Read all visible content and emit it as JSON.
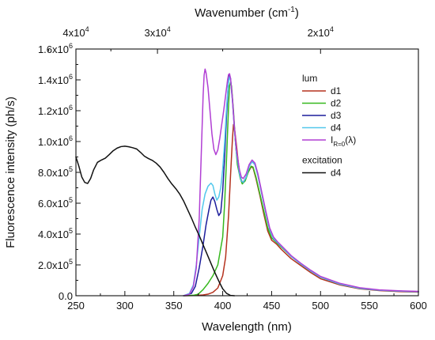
{
  "chart_data": {
    "type": "line",
    "x_axis": {
      "label": "Wavelength (nm)",
      "min": 250,
      "max": 600,
      "ticks": [
        250,
        300,
        350,
        400,
        450,
        500,
        550,
        600
      ],
      "tick_labels": [
        "250",
        "300",
        "350",
        "400",
        "450",
        "500",
        "550",
        "600"
      ]
    },
    "y_axis": {
      "label": "Fluorescence intensity (ph/s)",
      "min": 0,
      "max": 1600000,
      "ticks": [
        0,
        200000,
        400000,
        600000,
        800000,
        1000000,
        1200000,
        1400000,
        1600000
      ],
      "tick_labels": [
        {
          "mantissa": "0.0",
          "exp": ""
        },
        {
          "mantissa": "2.0x10",
          "exp": "5"
        },
        {
          "mantissa": "4.0x10",
          "exp": "5"
        },
        {
          "mantissa": "6.0x10",
          "exp": "5"
        },
        {
          "mantissa": "8.0x10",
          "exp": "5"
        },
        {
          "mantissa": "1.0x10",
          "exp": "6"
        },
        {
          "mantissa": "1.2x10",
          "exp": "6"
        },
        {
          "mantissa": "1.4x10",
          "exp": "6"
        },
        {
          "mantissa": "1.6x10",
          "exp": "6"
        }
      ]
    },
    "top_axis": {
      "label_main": "Wavenumber (cm",
      "label_exp": "-1",
      "label_end": ")",
      "ticks": [
        {
          "wavenumber": 40000,
          "mantissa": "4x10",
          "exp": "4"
        },
        {
          "wavenumber": 30000,
          "mantissa": "3x10",
          "exp": "4"
        },
        {
          "wavenumber": 20000,
          "mantissa": "2x10",
          "exp": "4"
        }
      ]
    },
    "legend": {
      "placement": "right",
      "lum_title": "lum",
      "exc_title": "excitation",
      "entries": [
        {
          "label": "d1",
          "color": "#b5321e"
        },
        {
          "label": "d2",
          "color": "#36b81e"
        },
        {
          "label": "d3",
          "color": "#1c1d9c"
        },
        {
          "label": "d4",
          "color": "#52c8ec"
        },
        {
          "label_main": "I",
          "label_sub": "R=0",
          "label_paren": "(λ)",
          "color": "#b13fd4"
        },
        {
          "label": "d4",
          "color": "#111111"
        }
      ]
    },
    "series": [
      {
        "name": "d1",
        "color": "#b5321e",
        "points": [
          [
            360,
            0
          ],
          [
            370,
            1000
          ],
          [
            380,
            5000
          ],
          [
            385,
            10000
          ],
          [
            390,
            22000
          ],
          [
            395,
            50000
          ],
          [
            400,
            130000
          ],
          [
            403,
            250000
          ],
          [
            406,
            520000
          ],
          [
            408,
            780000
          ],
          [
            410,
            1020000
          ],
          [
            411,
            1110000
          ],
          [
            412,
            1090000
          ],
          [
            414,
            980000
          ],
          [
            416,
            860000
          ],
          [
            418,
            770000
          ],
          [
            420,
            735000
          ],
          [
            423,
            750000
          ],
          [
            426,
            800000
          ],
          [
            429,
            835000
          ],
          [
            431,
            830000
          ],
          [
            434,
            760000
          ],
          [
            438,
            650000
          ],
          [
            442,
            530000
          ],
          [
            446,
            420000
          ],
          [
            450,
            360000
          ],
          [
            455,
            335000
          ],
          [
            460,
            300000
          ],
          [
            470,
            240000
          ],
          [
            480,
            195000
          ],
          [
            490,
            150000
          ],
          [
            500,
            110000
          ],
          [
            520,
            70000
          ],
          [
            540,
            45000
          ],
          [
            560,
            33000
          ],
          [
            580,
            27000
          ],
          [
            600,
            24000
          ]
        ]
      },
      {
        "name": "d2",
        "color": "#36b81e",
        "points": [
          [
            360,
            0
          ],
          [
            370,
            3000
          ],
          [
            375,
            10000
          ],
          [
            380,
            40000
          ],
          [
            385,
            80000
          ],
          [
            390,
            130000
          ],
          [
            395,
            200000
          ],
          [
            400,
            380000
          ],
          [
            402,
            600000
          ],
          [
            404,
            900000
          ],
          [
            406,
            1230000
          ],
          [
            407,
            1360000
          ],
          [
            408,
            1385000
          ],
          [
            409,
            1360000
          ],
          [
            411,
            1200000
          ],
          [
            413,
            1000000
          ],
          [
            415,
            850000
          ],
          [
            418,
            760000
          ],
          [
            420,
            725000
          ],
          [
            423,
            745000
          ],
          [
            426,
            800000
          ],
          [
            429,
            840000
          ],
          [
            431,
            835000
          ],
          [
            434,
            770000
          ],
          [
            438,
            660000
          ],
          [
            442,
            550000
          ],
          [
            446,
            440000
          ],
          [
            450,
            375000
          ],
          [
            455,
            345000
          ],
          [
            460,
            315000
          ],
          [
            470,
            255000
          ],
          [
            480,
            205000
          ],
          [
            490,
            160000
          ],
          [
            500,
            120000
          ],
          [
            520,
            75000
          ],
          [
            540,
            48000
          ],
          [
            560,
            36000
          ],
          [
            580,
            30000
          ],
          [
            600,
            26000
          ]
        ]
      },
      {
        "name": "d3",
        "color": "#1c1d9c",
        "points": [
          [
            360,
            0
          ],
          [
            368,
            15000
          ],
          [
            372,
            60000
          ],
          [
            376,
            180000
          ],
          [
            380,
            330000
          ],
          [
            383,
            460000
          ],
          [
            386,
            560000
          ],
          [
            388,
            620000
          ],
          [
            390,
            640000
          ],
          [
            392,
            610000
          ],
          [
            394,
            560000
          ],
          [
            396,
            520000
          ],
          [
            398,
            540000
          ],
          [
            400,
            680000
          ],
          [
            402,
            900000
          ],
          [
            404,
            1180000
          ],
          [
            406,
            1400000
          ],
          [
            407,
            1430000
          ],
          [
            408,
            1410000
          ],
          [
            410,
            1270000
          ],
          [
            412,
            1080000
          ],
          [
            414,
            930000
          ],
          [
            417,
            800000
          ],
          [
            419,
            745000
          ],
          [
            421,
            735000
          ],
          [
            424,
            770000
          ],
          [
            427,
            840000
          ],
          [
            430,
            870000
          ],
          [
            433,
            850000
          ],
          [
            436,
            780000
          ],
          [
            440,
            660000
          ],
          [
            444,
            540000
          ],
          [
            448,
            430000
          ],
          [
            452,
            370000
          ],
          [
            456,
            345000
          ],
          [
            460,
            320000
          ],
          [
            470,
            255000
          ],
          [
            480,
            205000
          ],
          [
            490,
            160000
          ],
          [
            500,
            120000
          ],
          [
            520,
            75000
          ],
          [
            540,
            48000
          ],
          [
            560,
            36000
          ],
          [
            580,
            30000
          ],
          [
            600,
            26000
          ]
        ]
      },
      {
        "name": "d4",
        "color": "#52c8ec",
        "points": [
          [
            360,
            0
          ],
          [
            366,
            15000
          ],
          [
            370,
            70000
          ],
          [
            373,
            200000
          ],
          [
            376,
            380000
          ],
          [
            379,
            560000
          ],
          [
            382,
            660000
          ],
          [
            385,
            710000
          ],
          [
            388,
            730000
          ],
          [
            390,
            715000
          ],
          [
            392,
            660000
          ],
          [
            394,
            620000
          ],
          [
            396,
            640000
          ],
          [
            398,
            700000
          ],
          [
            400,
            820000
          ],
          [
            402,
            1000000
          ],
          [
            404,
            1230000
          ],
          [
            406,
            1390000
          ],
          [
            407,
            1420000
          ],
          [
            408,
            1400000
          ],
          [
            410,
            1260000
          ],
          [
            412,
            1080000
          ],
          [
            414,
            930000
          ],
          [
            417,
            800000
          ],
          [
            419,
            745000
          ],
          [
            421,
            735000
          ],
          [
            424,
            770000
          ],
          [
            427,
            840000
          ],
          [
            430,
            870000
          ],
          [
            433,
            850000
          ],
          [
            436,
            780000
          ],
          [
            440,
            660000
          ],
          [
            444,
            540000
          ],
          [
            448,
            430000
          ],
          [
            452,
            370000
          ],
          [
            456,
            345000
          ],
          [
            460,
            320000
          ],
          [
            470,
            255000
          ],
          [
            480,
            205000
          ],
          [
            490,
            160000
          ],
          [
            500,
            120000
          ],
          [
            520,
            75000
          ],
          [
            540,
            48000
          ],
          [
            560,
            36000
          ],
          [
            580,
            30000
          ],
          [
            600,
            26000
          ]
        ]
      },
      {
        "name": "IR=0(λ)",
        "color": "#b13fd4",
        "points": [
          [
            360,
            0
          ],
          [
            366,
            10000
          ],
          [
            370,
            60000
          ],
          [
            373,
            180000
          ],
          [
            376,
            500000
          ],
          [
            378,
            900000
          ],
          [
            380,
            1300000
          ],
          [
            381,
            1430000
          ],
          [
            382,
            1470000
          ],
          [
            383,
            1445000
          ],
          [
            385,
            1350000
          ],
          [
            387,
            1200000
          ],
          [
            389,
            1050000
          ],
          [
            391,
            950000
          ],
          [
            393,
            915000
          ],
          [
            395,
            945000
          ],
          [
            397,
            1020000
          ],
          [
            399,
            1110000
          ],
          [
            401,
            1200000
          ],
          [
            403,
            1300000
          ],
          [
            405,
            1400000
          ],
          [
            406,
            1435000
          ],
          [
            407,
            1440000
          ],
          [
            408,
            1410000
          ],
          [
            410,
            1270000
          ],
          [
            412,
            1090000
          ],
          [
            414,
            950000
          ],
          [
            417,
            820000
          ],
          [
            419,
            770000
          ],
          [
            421,
            760000
          ],
          [
            424,
            790000
          ],
          [
            427,
            850000
          ],
          [
            430,
            880000
          ],
          [
            433,
            860000
          ],
          [
            436,
            790000
          ],
          [
            440,
            670000
          ],
          [
            444,
            550000
          ],
          [
            448,
            440000
          ],
          [
            452,
            380000
          ],
          [
            456,
            350000
          ],
          [
            460,
            325000
          ],
          [
            470,
            260000
          ],
          [
            480,
            210000
          ],
          [
            490,
            165000
          ],
          [
            500,
            125000
          ],
          [
            520,
            80000
          ],
          [
            540,
            52000
          ],
          [
            560,
            38000
          ],
          [
            580,
            32000
          ],
          [
            600,
            28000
          ]
        ]
      },
      {
        "name": "d4",
        "color": "#111111",
        "points": [
          [
            250,
            900000
          ],
          [
            253,
            840000
          ],
          [
            256,
            770000
          ],
          [
            259,
            735000
          ],
          [
            262,
            728000
          ],
          [
            265,
            760000
          ],
          [
            268,
            815000
          ],
          [
            272,
            865000
          ],
          [
            276,
            880000
          ],
          [
            280,
            892000
          ],
          [
            284,
            915000
          ],
          [
            288,
            940000
          ],
          [
            292,
            957000
          ],
          [
            296,
            967000
          ],
          [
            300,
            970000
          ],
          [
            304,
            966000
          ],
          [
            308,
            960000
          ],
          [
            312,
            952000
          ],
          [
            316,
            930000
          ],
          [
            320,
            905000
          ],
          [
            324,
            890000
          ],
          [
            328,
            878000
          ],
          [
            332,
            860000
          ],
          [
            336,
            835000
          ],
          [
            340,
            800000
          ],
          [
            344,
            760000
          ],
          [
            348,
            725000
          ],
          [
            352,
            695000
          ],
          [
            356,
            660000
          ],
          [
            360,
            615000
          ],
          [
            364,
            560000
          ],
          [
            368,
            505000
          ],
          [
            372,
            445000
          ],
          [
            376,
            390000
          ],
          [
            380,
            330000
          ],
          [
            384,
            270000
          ],
          [
            388,
            210000
          ],
          [
            392,
            150000
          ],
          [
            396,
            95000
          ],
          [
            400,
            45000
          ],
          [
            404,
            15000
          ],
          [
            408,
            2000
          ],
          [
            412,
            0
          ]
        ]
      }
    ]
  }
}
